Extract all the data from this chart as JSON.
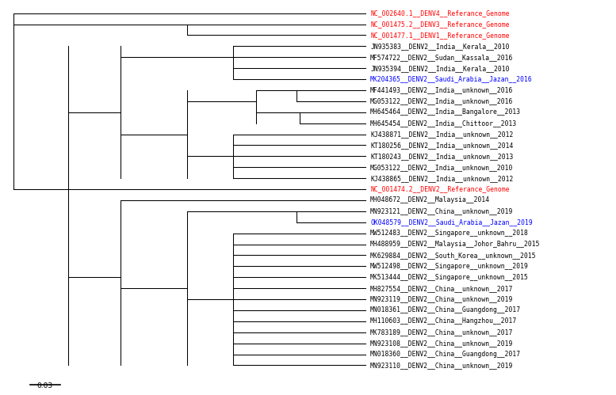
{
  "taxa": [
    {
      "name": "NC_002640.1__DENV4__Referance_Genome",
      "color": "red",
      "y": 0
    },
    {
      "name": "NC_001475.2__DENV3__Referance_Genome",
      "color": "red",
      "y": 1
    },
    {
      "name": "NC_001477.1__DENV1__Referance_Genome",
      "color": "red",
      "y": 2
    },
    {
      "name": "JN935383__DENV2__India__Kerala__2010",
      "color": "black",
      "y": 3
    },
    {
      "name": "MF574722__DENV2__Sudan__Kassala__2016",
      "color": "black",
      "y": 4
    },
    {
      "name": "JN935394__DENV2__India__Kerala__2010",
      "color": "black",
      "y": 5
    },
    {
      "name": "MK204365__DENV2__Saudi_Arabia__Jazan__2016",
      "color": "blue",
      "y": 6
    },
    {
      "name": "MF441493__DENV2__India__unknown__2016",
      "color": "black",
      "y": 7
    },
    {
      "name": "MG053122__DENV2__India__unknown__2016",
      "color": "black",
      "y": 8
    },
    {
      "name": "MH645464__DENV2__India__Bangalore__2013",
      "color": "black",
      "y": 9
    },
    {
      "name": "MH645454__DENV2__India__Chittoor__2013",
      "color": "black",
      "y": 10
    },
    {
      "name": "KJ438871__DENV2__India__unknown__2012",
      "color": "black",
      "y": 11
    },
    {
      "name": "KT180256__DENV2__India__unknown__2014",
      "color": "black",
      "y": 12
    },
    {
      "name": "KT180243__DENV2__India__unknown__2013",
      "color": "black",
      "y": 13
    },
    {
      "name": "MG053122__DENV2__India__unknown__2010",
      "color": "black",
      "y": 14
    },
    {
      "name": "KJ438865__DENV2__India__unknown__2012",
      "color": "black",
      "y": 15
    },
    {
      "name": "NC_001474.2__DENV2__Referance_Genome",
      "color": "red",
      "y": 16
    },
    {
      "name": "MH048672__DENV2__Malaysia__2014",
      "color": "black",
      "y": 17
    },
    {
      "name": "MN923121__DENV2__China__unknown__2019",
      "color": "black",
      "y": 18
    },
    {
      "name": "OK048579__DENV2__Saudi_Arabia__Jazan__2019",
      "color": "blue",
      "y": 19
    },
    {
      "name": "MW512483__DENV2__Singapore__unknown__2018",
      "color": "black",
      "y": 20
    },
    {
      "name": "MH488959__DENV2__Malaysia__Johor_Bahru__2015",
      "color": "black",
      "y": 21
    },
    {
      "name": "MK629884__DENV2__South_Korea__unknown__2015",
      "color": "black",
      "y": 22
    },
    {
      "name": "MW512498__DENV2__Singapore__unknown__2019",
      "color": "black",
      "y": 23
    },
    {
      "name": "MK513444__DENV2__Singapore__unknown__2015",
      "color": "black",
      "y": 24
    },
    {
      "name": "MH827554__DENV2__China__unknown__2017",
      "color": "black",
      "y": 25
    },
    {
      "name": "MN923119__DENV2__China__unknown__2019",
      "color": "black",
      "y": 26
    },
    {
      "name": "MN018361__DENV2__China__Guangdong__2017",
      "color": "black",
      "y": 27
    },
    {
      "name": "MH110603__DENV2__China__Hangzhou__2017",
      "color": "black",
      "y": 28
    },
    {
      "name": "MK783189__DENV2__China__unknown__2017",
      "color": "black",
      "y": 29
    },
    {
      "name": "MN923108__DENV2__China__unknown__2019",
      "color": "black",
      "y": 30
    },
    {
      "name": "MN018360__DENV2__China__Guangdong__2017",
      "color": "black",
      "y": 31
    },
    {
      "name": "MN923110__DENV2__China__unknown__2019",
      "color": "black",
      "y": 32
    }
  ],
  "background_color": "white",
  "line_color": "black",
  "font_size": 5.8,
  "lw": 0.75
}
